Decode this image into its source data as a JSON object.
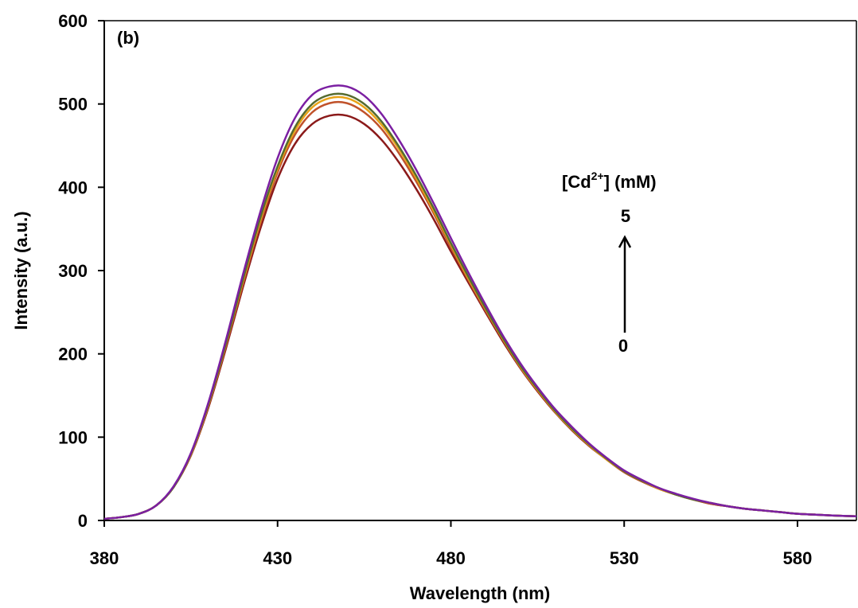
{
  "chart_data": {
    "type": "line",
    "panel_label": "(b)",
    "title": "",
    "xlabel": "Wavelength (nm)",
    "ylabel": "Intensity (a.u.)",
    "xlim": [
      380,
      597
    ],
    "ylim": [
      0,
      600
    ],
    "x_ticks": [
      380,
      430,
      480,
      530,
      580
    ],
    "y_ticks": [
      0,
      100,
      200,
      300,
      400,
      500,
      600
    ],
    "grid": false,
    "legend": "none",
    "annotation": {
      "label_main": "[Cd",
      "label_sup": "2+",
      "label_tail": "] (mM)",
      "top_value": "5",
      "bottom_value": "0"
    },
    "x": [
      380,
      385,
      390,
      395,
      400,
      405,
      410,
      415,
      420,
      425,
      430,
      435,
      440,
      445,
      450,
      455,
      460,
      465,
      470,
      475,
      480,
      485,
      490,
      495,
      500,
      505,
      510,
      515,
      520,
      525,
      530,
      535,
      540,
      545,
      550,
      555,
      560,
      565,
      570,
      575,
      580,
      585,
      590,
      597
    ],
    "series": [
      {
        "color": "#8B1A1A",
        "values": [
          2,
          4,
          8,
          18,
          40,
          78,
          135,
          205,
          280,
          350,
          410,
          452,
          476,
          486,
          486,
          476,
          457,
          430,
          398,
          362,
          323,
          286,
          250,
          215,
          183,
          155,
          130,
          108,
          89,
          73,
          58,
          47,
          38,
          31,
          25,
          20,
          17,
          14,
          12,
          10,
          8,
          7,
          6,
          5
        ]
      },
      {
        "color": "#C0522A",
        "values": [
          2,
          4,
          8,
          18,
          40,
          79,
          137,
          208,
          284,
          356,
          418,
          463,
          490,
          501,
          501,
          490,
          470,
          441,
          407,
          369,
          328,
          289,
          252,
          217,
          184,
          156,
          131,
          109,
          90,
          73,
          58,
          47,
          38,
          31,
          25,
          20,
          17,
          14,
          12,
          10,
          8,
          7,
          6,
          5
        ]
      },
      {
        "color": "#E8A317",
        "values": [
          2,
          4,
          8,
          18,
          40,
          79,
          138,
          210,
          287,
          360,
          422,
          468,
          496,
          507,
          507,
          496,
          475,
          446,
          411,
          372,
          331,
          291,
          254,
          218,
          185,
          157,
          131,
          109,
          90,
          73,
          59,
          48,
          38,
          31,
          25,
          21,
          17,
          14,
          12,
          10,
          8,
          7,
          6,
          5
        ]
      },
      {
        "color": "#556B2F",
        "values": [
          2,
          4,
          8,
          18,
          40,
          80,
          139,
          211,
          289,
          363,
          425,
          472,
          500,
          511,
          511,
          500,
          479,
          449,
          414,
          375,
          333,
          293,
          255,
          219,
          186,
          158,
          132,
          110,
          91,
          74,
          59,
          48,
          39,
          31,
          25,
          21,
          17,
          14,
          12,
          10,
          8,
          7,
          6,
          5
        ]
      },
      {
        "color": "#7B1FA2",
        "values": [
          2,
          4,
          8,
          18,
          41,
          81,
          141,
          215,
          295,
          370,
          435,
          483,
          511,
          521,
          521,
          510,
          488,
          457,
          421,
          381,
          339,
          298,
          259,
          222,
          189,
          160,
          134,
          112,
          92,
          75,
          60,
          49,
          39,
          32,
          26,
          21,
          17,
          14,
          12,
          10,
          8,
          7,
          6,
          5
        ]
      }
    ]
  }
}
